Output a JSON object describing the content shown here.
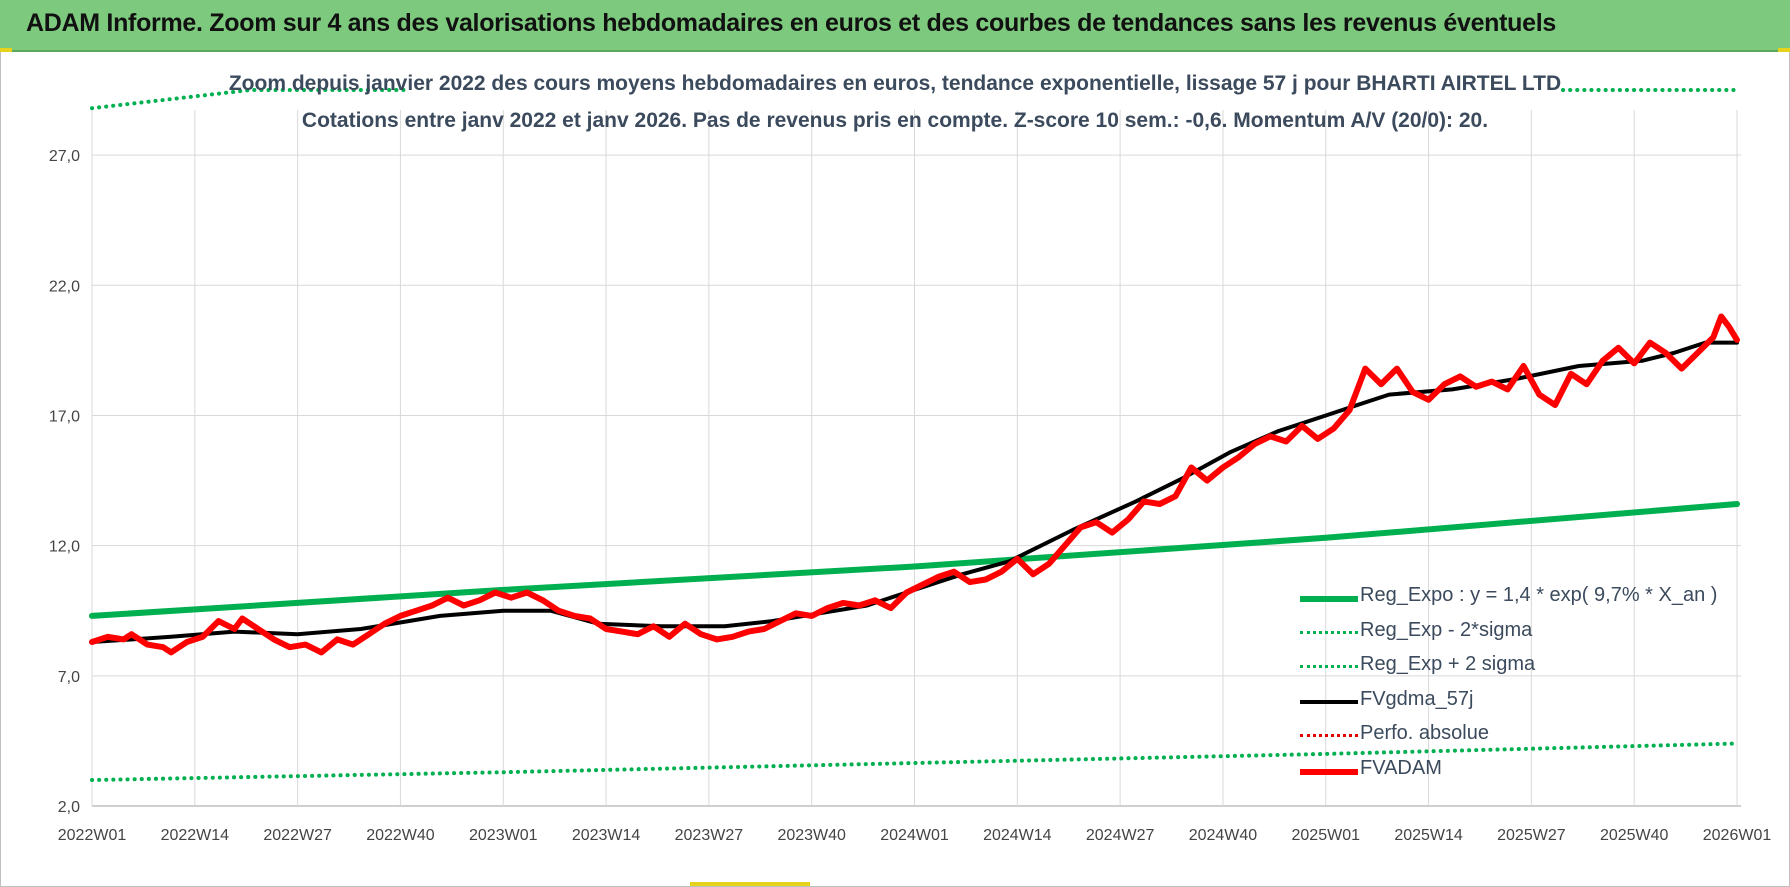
{
  "banner": {
    "title": "ADAM Informe. Zoom sur 4 ans des valorisations hebdomadaires en euros et des courbes de tendances sans les revenus éventuels"
  },
  "chart_data": {
    "type": "line",
    "title": "Zoom depuis janvier 2022 des cours moyens hebdomadaires en euros, tendance exponentielle, lissage 57 j pour BHARTI AIRTEL LTD",
    "subtitle": "Cotations entre janv 2022 et janv 2026. Pas de revenus pris en compte. Z-score 10 sem.: -0,6. Momentum A/V (20/0): 20.",
    "x_ticks": [
      "2022W01",
      "2022W14",
      "2022W27",
      "2022W40",
      "2023W01",
      "2023W14",
      "2023W27",
      "2023W40",
      "2024W01",
      "2024W14",
      "2024W27",
      "2024W40",
      "2025W01",
      "2025W14",
      "2025W27",
      "2025W40",
      "2026W01"
    ],
    "y_ticks": [
      "2,0",
      "7,0",
      "12,0",
      "17,0",
      "22,0",
      "27,0"
    ],
    "ylim": [
      2,
      29.5
    ],
    "x_range_weeks": [
      0,
      208
    ],
    "grid": true,
    "legend_position": "bottom-right",
    "colors": {
      "reg_expo": "#00b050",
      "fvgdma": "#000000",
      "perfo": "#e00000",
      "fvadam": "#ff0000"
    },
    "series": [
      {
        "name": "Reg_Expo : y = 1,4 * exp( 9,7% *  X_an )",
        "style": "solid",
        "color": "#00b050",
        "width": 6,
        "points": [
          [
            0,
            9.3
          ],
          [
            52,
            10.3
          ],
          [
            104,
            11.2
          ],
          [
            156,
            12.3
          ],
          [
            208,
            13.6
          ]
        ]
      },
      {
        "name": "Reg_Exp - 2*sigma",
        "style": "dotted",
        "color": "#00b050",
        "width": 4,
        "points": [
          [
            0,
            3.0
          ],
          [
            52,
            3.3
          ],
          [
            104,
            3.65
          ],
          [
            156,
            4.0
          ],
          [
            208,
            4.4
          ]
        ]
      },
      {
        "name": "Reg_Exp + 2 sigma",
        "style": "dotted",
        "color": "#00b050",
        "width": 4,
        "points": [
          [
            0,
            28.8
          ],
          [
            20,
            29.8
          ],
          [
            40,
            30.8
          ],
          [
            186,
            29.5
          ],
          [
            208,
            29.5
          ]
        ]
      },
      {
        "name": "FVgdma_57j",
        "style": "solid",
        "color": "#000000",
        "width": 4,
        "points": [
          [
            0,
            8.3
          ],
          [
            10,
            8.5
          ],
          [
            18,
            8.7
          ],
          [
            26,
            8.6
          ],
          [
            34,
            8.8
          ],
          [
            44,
            9.3
          ],
          [
            52,
            9.5
          ],
          [
            58,
            9.5
          ],
          [
            64,
            9.0
          ],
          [
            72,
            8.9
          ],
          [
            80,
            8.9
          ],
          [
            86,
            9.1
          ],
          [
            92,
            9.4
          ],
          [
            98,
            9.7
          ],
          [
            104,
            10.3
          ],
          [
            110,
            10.9
          ],
          [
            116,
            11.4
          ],
          [
            124,
            12.6
          ],
          [
            132,
            13.7
          ],
          [
            138,
            14.6
          ],
          [
            144,
            15.6
          ],
          [
            150,
            16.4
          ],
          [
            156,
            17.0
          ],
          [
            160,
            17.4
          ],
          [
            164,
            17.8
          ],
          [
            172,
            18.0
          ],
          [
            180,
            18.4
          ],
          [
            188,
            18.9
          ],
          [
            196,
            19.1
          ],
          [
            200,
            19.4
          ],
          [
            204,
            19.8
          ],
          [
            208,
            19.8
          ]
        ]
      },
      {
        "name": "Perfo. absolue",
        "style": "dotted",
        "color": "#e00000",
        "width": 3,
        "points": []
      },
      {
        "name": "FVADAM",
        "style": "solid",
        "color": "#ff0000",
        "width": 6,
        "points": [
          [
            0,
            8.3
          ],
          [
            2,
            8.5
          ],
          [
            4,
            8.4
          ],
          [
            5,
            8.6
          ],
          [
            7,
            8.2
          ],
          [
            9,
            8.1
          ],
          [
            10,
            7.9
          ],
          [
            12,
            8.3
          ],
          [
            14,
            8.5
          ],
          [
            16,
            9.1
          ],
          [
            18,
            8.8
          ],
          [
            19,
            9.2
          ],
          [
            21,
            8.8
          ],
          [
            23,
            8.4
          ],
          [
            25,
            8.1
          ],
          [
            27,
            8.2
          ],
          [
            29,
            7.9
          ],
          [
            31,
            8.4
          ],
          [
            33,
            8.2
          ],
          [
            35,
            8.6
          ],
          [
            37,
            9.0
          ],
          [
            39,
            9.3
          ],
          [
            41,
            9.5
          ],
          [
            43,
            9.7
          ],
          [
            45,
            10.0
          ],
          [
            47,
            9.7
          ],
          [
            49,
            9.9
          ],
          [
            51,
            10.2
          ],
          [
            53,
            10.0
          ],
          [
            55,
            10.2
          ],
          [
            57,
            9.9
          ],
          [
            59,
            9.5
          ],
          [
            61,
            9.3
          ],
          [
            63,
            9.2
          ],
          [
            65,
            8.8
          ],
          [
            67,
            8.7
          ],
          [
            69,
            8.6
          ],
          [
            71,
            8.9
          ],
          [
            73,
            8.5
          ],
          [
            75,
            9.0
          ],
          [
            77,
            8.6
          ],
          [
            79,
            8.4
          ],
          [
            81,
            8.5
          ],
          [
            83,
            8.7
          ],
          [
            85,
            8.8
          ],
          [
            87,
            9.1
          ],
          [
            89,
            9.4
          ],
          [
            91,
            9.3
          ],
          [
            93,
            9.6
          ],
          [
            95,
            9.8
          ],
          [
            97,
            9.7
          ],
          [
            99,
            9.9
          ],
          [
            101,
            9.6
          ],
          [
            103,
            10.2
          ],
          [
            105,
            10.5
          ],
          [
            107,
            10.8
          ],
          [
            109,
            11.0
          ],
          [
            111,
            10.6
          ],
          [
            113,
            10.7
          ],
          [
            115,
            11.0
          ],
          [
            117,
            11.5
          ],
          [
            119,
            10.9
          ],
          [
            121,
            11.3
          ],
          [
            123,
            12.0
          ],
          [
            125,
            12.7
          ],
          [
            127,
            12.9
          ],
          [
            129,
            12.5
          ],
          [
            131,
            13.0
          ],
          [
            133,
            13.7
          ],
          [
            135,
            13.6
          ],
          [
            137,
            13.9
          ],
          [
            139,
            15.0
          ],
          [
            141,
            14.5
          ],
          [
            143,
            15.0
          ],
          [
            145,
            15.4
          ],
          [
            147,
            15.9
          ],
          [
            149,
            16.2
          ],
          [
            151,
            16.0
          ],
          [
            153,
            16.6
          ],
          [
            155,
            16.1
          ],
          [
            157,
            16.5
          ],
          [
            159,
            17.2
          ],
          [
            161,
            18.8
          ],
          [
            163,
            18.2
          ],
          [
            165,
            18.8
          ],
          [
            167,
            17.9
          ],
          [
            169,
            17.6
          ],
          [
            171,
            18.2
          ],
          [
            173,
            18.5
          ],
          [
            175,
            18.1
          ],
          [
            177,
            18.3
          ],
          [
            179,
            18.0
          ],
          [
            181,
            18.9
          ],
          [
            183,
            17.8
          ],
          [
            185,
            17.4
          ],
          [
            187,
            18.6
          ],
          [
            189,
            18.2
          ],
          [
            191,
            19.1
          ],
          [
            193,
            19.6
          ],
          [
            195,
            19.0
          ],
          [
            197,
            19.8
          ],
          [
            199,
            19.4
          ],
          [
            201,
            18.8
          ],
          [
            203,
            19.4
          ],
          [
            205,
            20.0
          ],
          [
            206,
            20.8
          ],
          [
            207,
            20.4
          ],
          [
            208,
            19.9
          ]
        ]
      }
    ]
  }
}
